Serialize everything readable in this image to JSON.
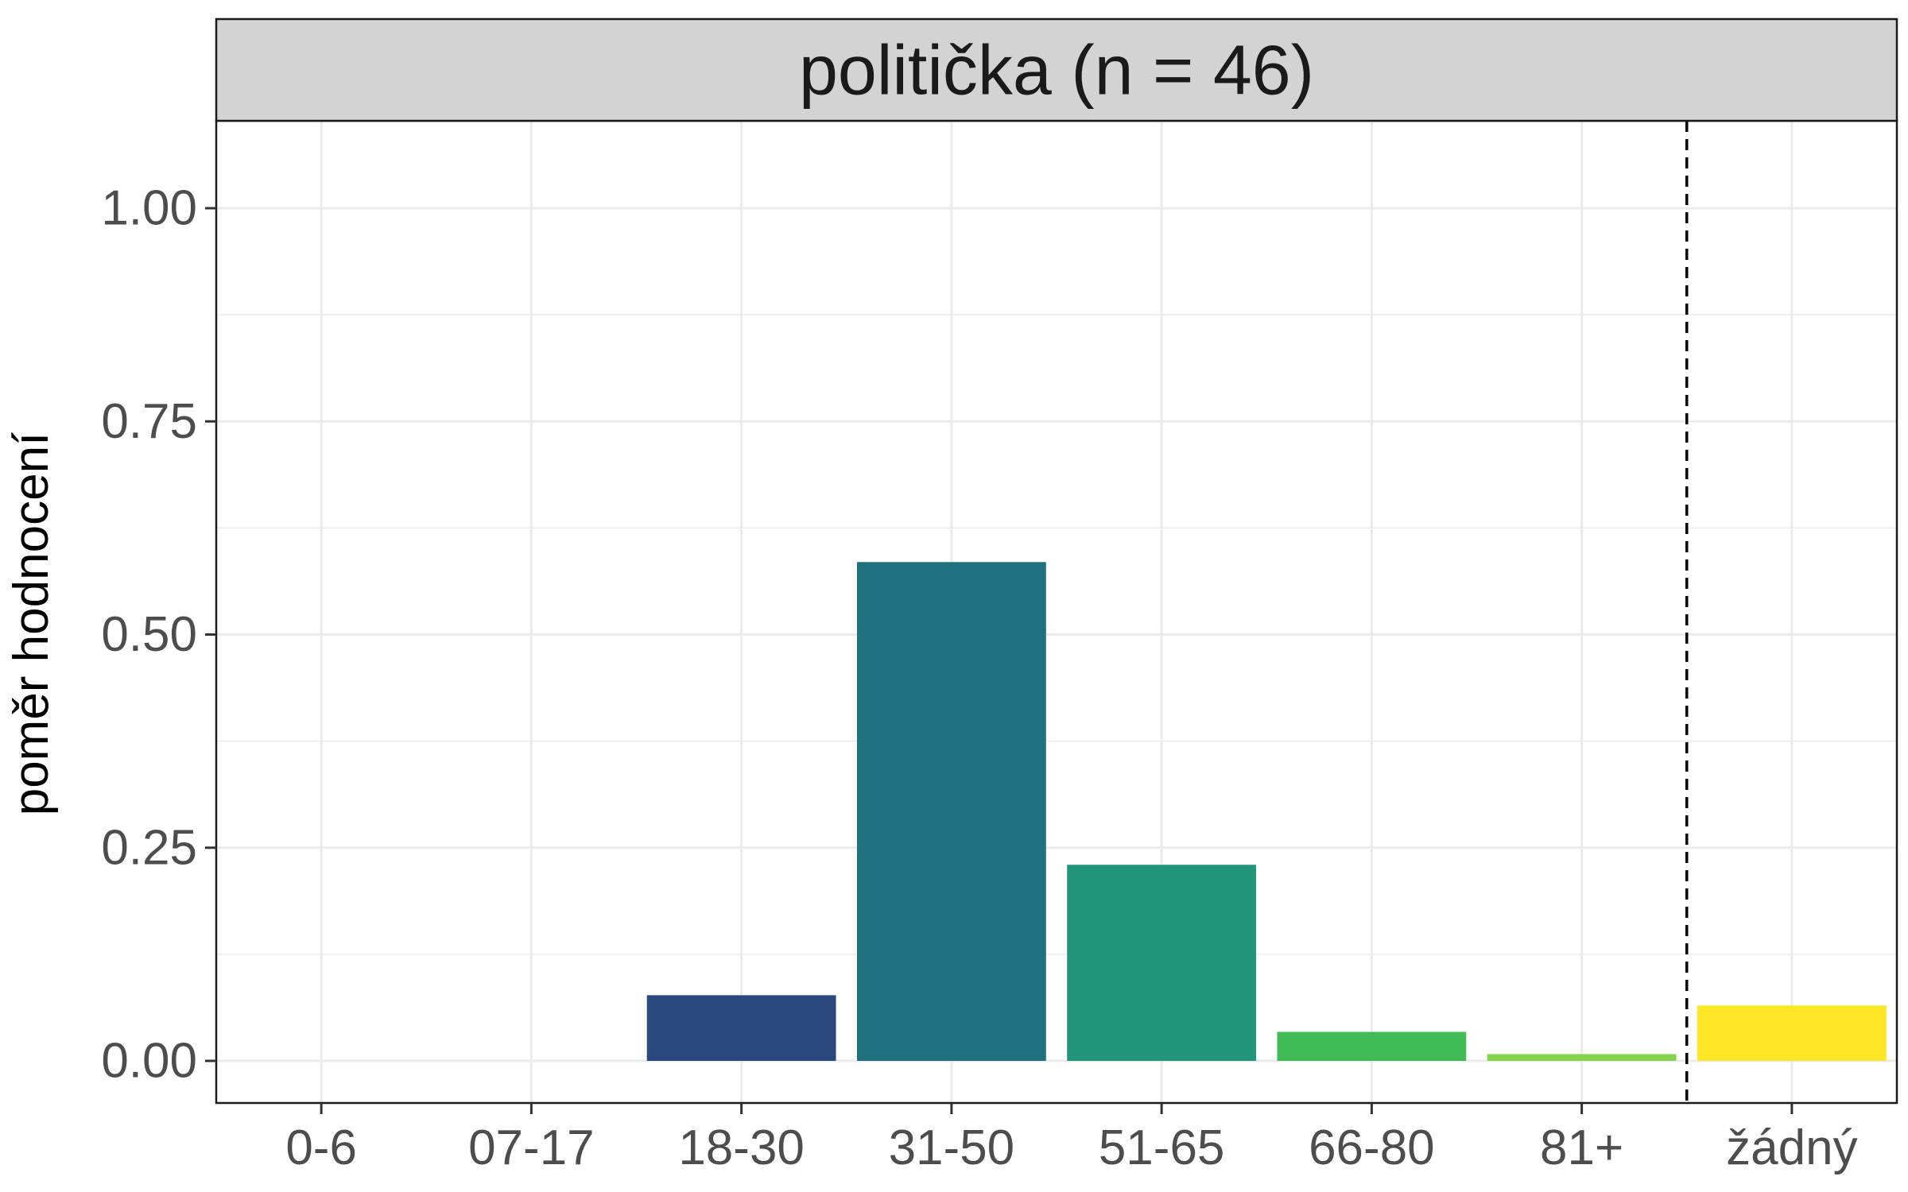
{
  "chart_data": {
    "type": "bar",
    "facet_title": "politička (n = 46)",
    "categories": [
      "0-6",
      "07-17",
      "18-30",
      "31-50",
      "51-65",
      "66-80",
      "81+",
      "žádný"
    ],
    "values": [
      0.0,
      0.0,
      0.077,
      0.585,
      0.23,
      0.034,
      0.008,
      0.065
    ],
    "colors": [
      "#440154",
      "#46337E",
      "#2B487C",
      "#21707E",
      "#22957A",
      "#41BB56",
      "#84D34B",
      "#FDE725"
    ],
    "xlabel": "",
    "ylabel": "poměr hodnocení",
    "ylim": [
      0,
      1.1
    ],
    "yticks": [
      "0.00",
      "0.25",
      "0.50",
      "0.75",
      "1.00"
    ],
    "ytick_values": [
      0,
      0.25,
      0.5,
      0.75,
      1.0
    ],
    "reference_line": {
      "between": [
        "81+",
        "žádný"
      ],
      "style": "dashed",
      "color": "#000000"
    },
    "grid": true,
    "legend": "none",
    "strip_color": "#D3D3D3",
    "grid_color": "#EBEBEB"
  }
}
